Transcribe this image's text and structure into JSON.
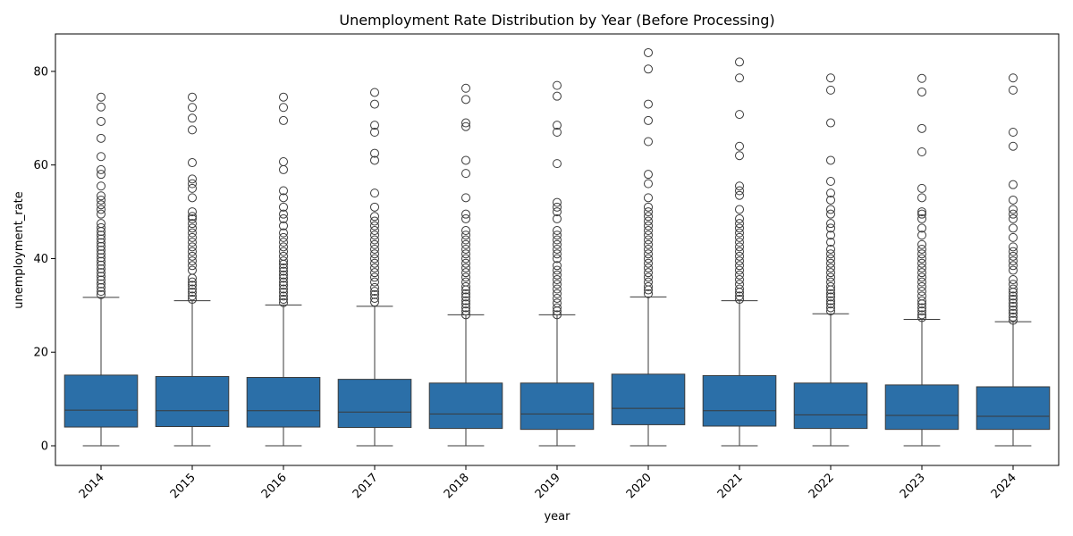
{
  "chart_data": {
    "type": "box",
    "title": "Unemployment Rate Distribution by Year (Before Processing)",
    "xlabel": "year",
    "ylabel": "unemployment_rate",
    "ylim": [
      -4.2,
      88
    ],
    "yticks": [
      0,
      20,
      40,
      60,
      80
    ],
    "grid": false,
    "legend": "none",
    "colors": {
      "box": "#2b6fa8",
      "line": "#3a3a3a",
      "outlier_edge": "#3a3a3a"
    },
    "categories": [
      "2014",
      "2015",
      "2016",
      "2017",
      "2018",
      "2019",
      "2020",
      "2021",
      "2022",
      "2023",
      "2024"
    ],
    "boxes": [
      {
        "year": "2014",
        "whisker_low": 0,
        "q1": 4.0,
        "median": 7.6,
        "q3": 15.1,
        "whisker_high": 31.7,
        "outliers": [
          32.3,
          33.0,
          33.8,
          34.6,
          35.4,
          36.2,
          37.0,
          37.8,
          38.6,
          39.4,
          40.2,
          41.0,
          41.8,
          42.6,
          43.4,
          44.2,
          45.0,
          45.8,
          46.6,
          47.5,
          49.5,
          50.5,
          51.5,
          52.5,
          53.4,
          55.5,
          58.0,
          59.0,
          61.8,
          65.7,
          69.3,
          72.4,
          74.5
        ]
      },
      {
        "year": "2015",
        "whisker_low": 0,
        "q1": 4.1,
        "median": 7.5,
        "q3": 14.8,
        "whisker_high": 31.0,
        "outliers": [
          31.3,
          32.0,
          32.8,
          33.5,
          34.3,
          35.0,
          35.8,
          37.5,
          38.5,
          39.5,
          40.5,
          41.5,
          42.5,
          43.5,
          44.5,
          45.5,
          46.5,
          47.5,
          48.5,
          49.0,
          50.0,
          53.0,
          55.0,
          56.0,
          57.0,
          60.5,
          67.5,
          70.0,
          72.3,
          74.5
        ]
      },
      {
        "year": "2016",
        "whisker_low": 0,
        "q1": 4.0,
        "median": 7.5,
        "q3": 14.6,
        "whisker_high": 30.1,
        "outliers": [
          30.6,
          31.3,
          32.0,
          32.8,
          33.5,
          34.3,
          35.0,
          35.8,
          36.5,
          37.3,
          38.0,
          38.8,
          39.5,
          40.5,
          41.5,
          42.5,
          43.5,
          44.5,
          45.5,
          47.0,
          48.5,
          49.5,
          51.0,
          53.0,
          54.5,
          59.0,
          60.7,
          69.5,
          72.3,
          74.5
        ]
      },
      {
        "year": "2017",
        "whisker_low": 0,
        "q1": 3.9,
        "median": 7.2,
        "q3": 14.2,
        "whisker_high": 29.8,
        "outliers": [
          30.7,
          31.5,
          32.3,
          33.0,
          33.8,
          35.0,
          36.0,
          37.0,
          38.0,
          39.0,
          40.0,
          41.0,
          42.0,
          43.0,
          44.0,
          45.0,
          46.0,
          47.0,
          48.0,
          49.0,
          51.0,
          54.0,
          61.0,
          62.5,
          67.0,
          68.5,
          73.0,
          75.5
        ]
      },
      {
        "year": "2018",
        "whisker_low": 0,
        "q1": 3.7,
        "median": 6.8,
        "q3": 13.4,
        "whisker_high": 28.0,
        "outliers": [
          28.0,
          28.8,
          29.5,
          30.3,
          31.0,
          31.8,
          32.5,
          33.3,
          34.0,
          35.0,
          36.0,
          37.0,
          38.0,
          39.0,
          40.0,
          41.0,
          42.0,
          43.0,
          44.0,
          45.0,
          46.0,
          48.5,
          49.5,
          53.0,
          58.2,
          61.0,
          68.2,
          69.0,
          74.0,
          76.4
        ]
      },
      {
        "year": "2019",
        "whisker_low": 0,
        "q1": 3.5,
        "median": 6.8,
        "q3": 13.4,
        "whisker_high": 28.0,
        "outliers": [
          28.0,
          28.8,
          29.5,
          30.5,
          31.5,
          32.5,
          33.5,
          34.5,
          35.5,
          36.5,
          37.5,
          38.5,
          40.0,
          41.0,
          42.0,
          43.0,
          44.0,
          45.0,
          46.0,
          48.5,
          50.0,
          51.0,
          52.0,
          60.3,
          67.0,
          68.5,
          74.7,
          77.0
        ]
      },
      {
        "year": "2020",
        "whisker_low": 0,
        "q1": 4.5,
        "median": 8.0,
        "q3": 15.3,
        "whisker_high": 31.8,
        "outliers": [
          32.5,
          33.3,
          34.0,
          35.0,
          36.0,
          37.0,
          38.0,
          39.0,
          40.0,
          41.0,
          42.0,
          43.0,
          44.0,
          45.0,
          46.0,
          47.0,
          48.0,
          49.0,
          50.0,
          51.0,
          53.0,
          56.0,
          58.0,
          65.0,
          69.5,
          73.0,
          80.5,
          84.0
        ]
      },
      {
        "year": "2021",
        "whisker_low": 0,
        "q1": 4.2,
        "median": 7.5,
        "q3": 15.0,
        "whisker_high": 31.0,
        "outliers": [
          31.3,
          32.0,
          32.8,
          33.5,
          34.5,
          35.5,
          36.5,
          37.5,
          38.5,
          39.5,
          40.5,
          41.5,
          42.5,
          43.5,
          44.5,
          45.5,
          46.5,
          47.5,
          48.5,
          50.5,
          53.5,
          54.5,
          55.5,
          62.0,
          64.0,
          70.8,
          78.6,
          82.0
        ]
      },
      {
        "year": "2022",
        "whisker_low": 0,
        "q1": 3.7,
        "median": 6.6,
        "q3": 13.4,
        "whisker_high": 28.2,
        "outliers": [
          28.8,
          29.5,
          30.3,
          31.0,
          31.8,
          32.5,
          33.3,
          34.0,
          35.0,
          36.0,
          37.0,
          38.0,
          39.0,
          40.0,
          41.0,
          42.0,
          43.5,
          45.0,
          46.5,
          47.5,
          49.5,
          50.5,
          52.5,
          54.0,
          56.5,
          61.0,
          69.0,
          76.0,
          78.6
        ]
      },
      {
        "year": "2023",
        "whisker_low": 0,
        "q1": 3.5,
        "median": 6.5,
        "q3": 13.0,
        "whisker_high": 27.0,
        "outliers": [
          27.4,
          28.0,
          28.8,
          29.5,
          30.3,
          31.0,
          32.0,
          33.0,
          34.0,
          35.0,
          36.0,
          37.0,
          38.0,
          39.0,
          40.0,
          41.0,
          42.0,
          43.0,
          45.0,
          46.5,
          48.5,
          49.5,
          50.0,
          53.0,
          55.0,
          62.8,
          67.8,
          75.6,
          78.5
        ]
      },
      {
        "year": "2024",
        "whisker_low": 0,
        "q1": 3.5,
        "median": 6.3,
        "q3": 12.6,
        "whisker_high": 26.5,
        "outliers": [
          26.8,
          27.5,
          28.3,
          29.0,
          29.8,
          30.5,
          31.3,
          32.0,
          32.8,
          33.5,
          34.5,
          35.5,
          37.5,
          38.5,
          39.5,
          40.5,
          41.5,
          42.5,
          44.5,
          46.5,
          48.5,
          49.5,
          50.5,
          52.5,
          55.8,
          64.0,
          67.0,
          76.0,
          78.6
        ]
      }
    ]
  }
}
